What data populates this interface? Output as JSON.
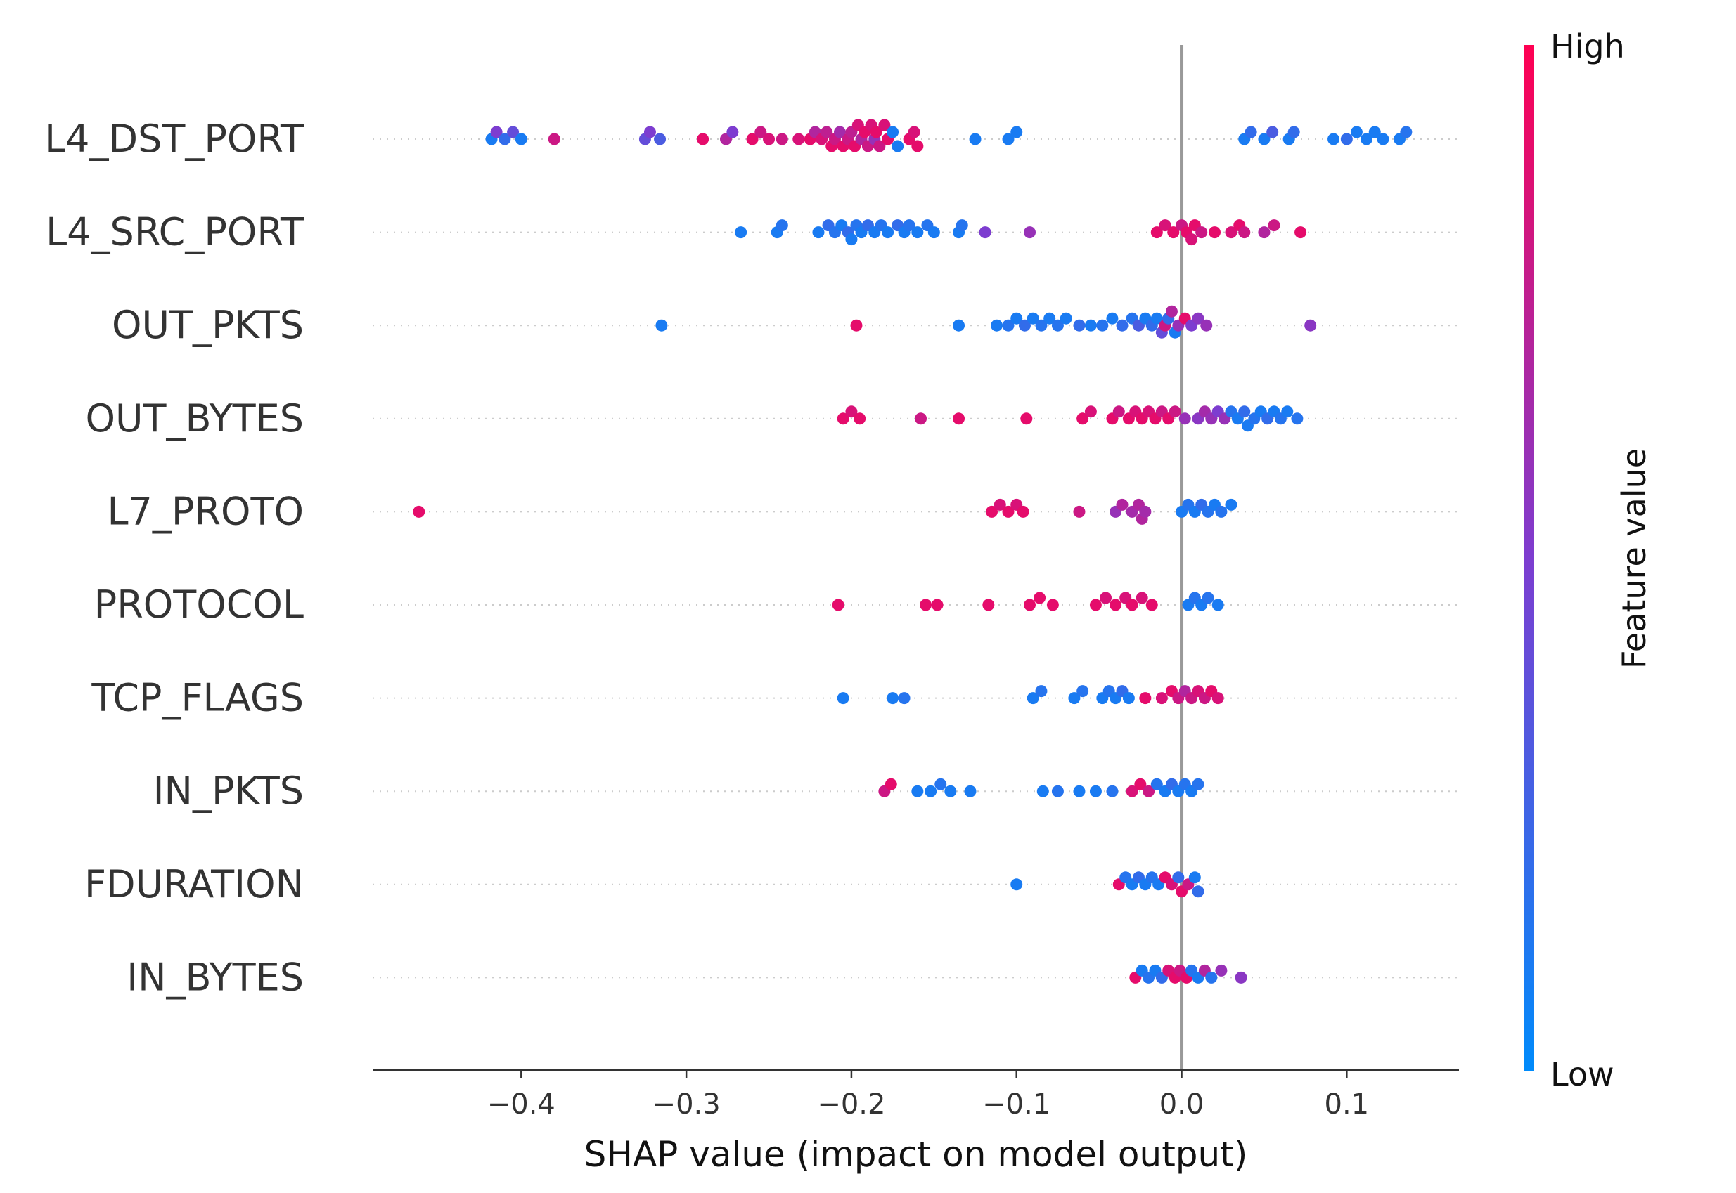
{
  "chart_data": {
    "type": "scatter",
    "title": "",
    "xlabel": "SHAP value (impact on model output)",
    "ylabel": "",
    "xlim": [
      -0.49,
      0.168
    ],
    "xticks": [
      -0.4,
      -0.3,
      -0.2,
      -0.1,
      0.0,
      0.1
    ],
    "xtick_labels": [
      "−0.4",
      "−0.3",
      "−0.2",
      "−0.1",
      "0.0",
      "0.1"
    ],
    "grid": false,
    "zero_line": 0.0,
    "features": [
      "L4_DST_PORT",
      "L4_SRC_PORT",
      "OUT_PKTS",
      "OUT_BYTES",
      "L7_PROTO",
      "PROTOCOL",
      "TCP_FLAGS",
      "IN_PKTS",
      "FDURATION",
      "IN_BYTES"
    ],
    "colorbar": {
      "title": "Feature value",
      "high_label": "High",
      "low_label": "Low",
      "low_color": "#008bfb",
      "high_color": "#ff0052"
    },
    "series": [
      {
        "feature": "L4_DST_PORT",
        "points": [
          [
            -0.418,
            0.1
          ],
          [
            -0.415,
            0.5
          ],
          [
            -0.41,
            0.2
          ],
          [
            -0.405,
            0.4
          ],
          [
            -0.4,
            0.1
          ],
          [
            -0.38,
            0.8
          ],
          [
            -0.325,
            0.4
          ],
          [
            -0.322,
            0.5
          ],
          [
            -0.316,
            0.3
          ],
          [
            -0.29,
            0.9
          ],
          [
            -0.276,
            0.7
          ],
          [
            -0.272,
            0.5
          ],
          [
            -0.26,
            0.9
          ],
          [
            -0.255,
            0.8
          ],
          [
            -0.25,
            0.85
          ],
          [
            -0.242,
            0.8
          ],
          [
            -0.232,
            0.85
          ],
          [
            -0.225,
            0.9
          ],
          [
            -0.222,
            0.7
          ],
          [
            -0.218,
            0.85
          ],
          [
            -0.215,
            0.75
          ],
          [
            -0.212,
            0.9
          ],
          [
            -0.21,
            0.8
          ],
          [
            -0.207,
            0.65
          ],
          [
            -0.205,
            0.9
          ],
          [
            -0.202,
            0.8
          ],
          [
            -0.2,
            0.75
          ],
          [
            -0.198,
            0.9
          ],
          [
            -0.196,
            0.85
          ],
          [
            -0.194,
            0.7
          ],
          [
            -0.192,
            0.9
          ],
          [
            -0.19,
            0.8
          ],
          [
            -0.188,
            0.85
          ],
          [
            -0.186,
            0.6
          ],
          [
            -0.185,
            0.9
          ],
          [
            -0.183,
            0.8
          ],
          [
            -0.18,
            0.85
          ],
          [
            -0.178,
            0.9
          ],
          [
            -0.175,
            0.1
          ],
          [
            -0.172,
            0.1
          ],
          [
            -0.165,
            0.9
          ],
          [
            -0.162,
            0.85
          ],
          [
            -0.16,
            0.9
          ],
          [
            -0.125,
            0.1
          ],
          [
            -0.105,
            0.1
          ],
          [
            -0.1,
            0.1
          ],
          [
            0.038,
            0.1
          ],
          [
            0.042,
            0.2
          ],
          [
            0.05,
            0.1
          ],
          [
            0.055,
            0.3
          ],
          [
            0.065,
            0.1
          ],
          [
            0.068,
            0.2
          ],
          [
            0.092,
            0.1
          ],
          [
            0.1,
            0.2
          ],
          [
            0.106,
            0.1
          ],
          [
            0.112,
            0.1
          ],
          [
            0.117,
            0.1
          ],
          [
            0.122,
            0.1
          ],
          [
            0.132,
            0.1
          ],
          [
            0.136,
            0.15
          ]
        ]
      },
      {
        "feature": "L4_SRC_PORT",
        "points": [
          [
            -0.267,
            0.1
          ],
          [
            -0.245,
            0.1
          ],
          [
            -0.242,
            0.15
          ],
          [
            -0.22,
            0.1
          ],
          [
            -0.214,
            0.2
          ],
          [
            -0.21,
            0.15
          ],
          [
            -0.206,
            0.1
          ],
          [
            -0.202,
            0.2
          ],
          [
            -0.2,
            0.1
          ],
          [
            -0.197,
            0.15
          ],
          [
            -0.194,
            0.1
          ],
          [
            -0.19,
            0.2
          ],
          [
            -0.186,
            0.1
          ],
          [
            -0.182,
            0.15
          ],
          [
            -0.178,
            0.1
          ],
          [
            -0.172,
            0.2
          ],
          [
            -0.168,
            0.1
          ],
          [
            -0.165,
            0.15
          ],
          [
            -0.16,
            0.1
          ],
          [
            -0.154,
            0.15
          ],
          [
            -0.15,
            0.1
          ],
          [
            -0.135,
            0.1
          ],
          [
            -0.133,
            0.15
          ],
          [
            -0.119,
            0.5
          ],
          [
            -0.092,
            0.6
          ],
          [
            -0.015,
            0.9
          ],
          [
            -0.01,
            0.85
          ],
          [
            -0.005,
            0.9
          ],
          [
            0.0,
            0.8
          ],
          [
            0.003,
            0.9
          ],
          [
            0.006,
            0.85
          ],
          [
            0.008,
            0.9
          ],
          [
            0.012,
            0.8
          ],
          [
            0.02,
            0.9
          ],
          [
            0.03,
            0.85
          ],
          [
            0.035,
            0.9
          ],
          [
            0.038,
            0.8
          ],
          [
            0.05,
            0.7
          ],
          [
            0.056,
            0.8
          ],
          [
            0.072,
            0.9
          ]
        ]
      },
      {
        "feature": "OUT_PKTS",
        "points": [
          [
            -0.315,
            0.1
          ],
          [
            -0.197,
            0.9
          ],
          [
            -0.135,
            0.1
          ],
          [
            -0.112,
            0.1
          ],
          [
            -0.105,
            0.15
          ],
          [
            -0.1,
            0.1
          ],
          [
            -0.095,
            0.2
          ],
          [
            -0.09,
            0.1
          ],
          [
            -0.085,
            0.15
          ],
          [
            -0.08,
            0.1
          ],
          [
            -0.075,
            0.15
          ],
          [
            -0.07,
            0.1
          ],
          [
            -0.062,
            0.2
          ],
          [
            -0.055,
            0.1
          ],
          [
            -0.048,
            0.15
          ],
          [
            -0.042,
            0.1
          ],
          [
            -0.036,
            0.2
          ],
          [
            -0.03,
            0.15
          ],
          [
            -0.026,
            0.3
          ],
          [
            -0.022,
            0.1
          ],
          [
            -0.018,
            0.2
          ],
          [
            -0.015,
            0.1
          ],
          [
            -0.012,
            0.4
          ],
          [
            -0.01,
            0.8
          ],
          [
            -0.008,
            0.2
          ],
          [
            -0.006,
            0.7
          ],
          [
            -0.004,
            0.1
          ],
          [
            -0.002,
            0.6
          ],
          [
            0.002,
            0.9
          ],
          [
            0.006,
            0.5
          ],
          [
            0.01,
            0.55
          ],
          [
            0.015,
            0.6
          ],
          [
            0.078,
            0.55
          ]
        ]
      },
      {
        "feature": "OUT_BYTES",
        "points": [
          [
            -0.205,
            0.9
          ],
          [
            -0.2,
            0.85
          ],
          [
            -0.195,
            0.9
          ],
          [
            -0.158,
            0.8
          ],
          [
            -0.135,
            0.9
          ],
          [
            -0.094,
            0.9
          ],
          [
            -0.06,
            0.9
          ],
          [
            -0.055,
            0.85
          ],
          [
            -0.042,
            0.9
          ],
          [
            -0.038,
            0.8
          ],
          [
            -0.032,
            0.9
          ],
          [
            -0.028,
            0.85
          ],
          [
            -0.024,
            0.9
          ],
          [
            -0.02,
            0.85
          ],
          [
            -0.016,
            0.9
          ],
          [
            -0.012,
            0.8
          ],
          [
            -0.008,
            0.9
          ],
          [
            -0.004,
            0.8
          ],
          [
            0.002,
            0.6
          ],
          [
            0.01,
            0.55
          ],
          [
            0.014,
            0.65
          ],
          [
            0.018,
            0.6
          ],
          [
            0.022,
            0.5
          ],
          [
            0.026,
            0.6
          ],
          [
            0.03,
            0.15
          ],
          [
            0.034,
            0.1
          ],
          [
            0.038,
            0.2
          ],
          [
            0.04,
            0.1
          ],
          [
            0.044,
            0.15
          ],
          [
            0.048,
            0.1
          ],
          [
            0.052,
            0.2
          ],
          [
            0.056,
            0.1
          ],
          [
            0.06,
            0.15
          ],
          [
            0.064,
            0.1
          ],
          [
            0.07,
            0.15
          ]
        ]
      },
      {
        "feature": "L7_PROTO",
        "points": [
          [
            -0.462,
            0.9
          ],
          [
            -0.115,
            0.9
          ],
          [
            -0.11,
            0.85
          ],
          [
            -0.105,
            0.9
          ],
          [
            -0.1,
            0.85
          ],
          [
            -0.096,
            0.9
          ],
          [
            -0.062,
            0.8
          ],
          [
            -0.04,
            0.6
          ],
          [
            -0.036,
            0.7
          ],
          [
            -0.03,
            0.65
          ],
          [
            -0.026,
            0.7
          ],
          [
            -0.024,
            0.7
          ],
          [
            -0.022,
            0.65
          ],
          [
            0.0,
            0.1
          ],
          [
            0.004,
            0.15
          ],
          [
            0.008,
            0.1
          ],
          [
            0.012,
            0.2
          ],
          [
            0.016,
            0.15
          ],
          [
            0.02,
            0.1
          ],
          [
            0.024,
            0.15
          ],
          [
            0.03,
            0.1
          ]
        ]
      },
      {
        "feature": "PROTOCOL",
        "points": [
          [
            -0.208,
            0.9
          ],
          [
            -0.155,
            0.9
          ],
          [
            -0.148,
            0.9
          ],
          [
            -0.117,
            0.9
          ],
          [
            -0.092,
            0.9
          ],
          [
            -0.086,
            0.9
          ],
          [
            -0.078,
            0.9
          ],
          [
            -0.052,
            0.9
          ],
          [
            -0.046,
            0.85
          ],
          [
            -0.04,
            0.9
          ],
          [
            -0.034,
            0.85
          ],
          [
            -0.03,
            0.9
          ],
          [
            -0.024,
            0.85
          ],
          [
            -0.018,
            0.9
          ],
          [
            0.004,
            0.1
          ],
          [
            0.008,
            0.15
          ],
          [
            0.012,
            0.1
          ],
          [
            0.016,
            0.15
          ],
          [
            0.022,
            0.1
          ]
        ]
      },
      {
        "feature": "TCP_FLAGS",
        "points": [
          [
            -0.205,
            0.1
          ],
          [
            -0.175,
            0.1
          ],
          [
            -0.168,
            0.15
          ],
          [
            -0.09,
            0.1
          ],
          [
            -0.085,
            0.15
          ],
          [
            -0.065,
            0.1
          ],
          [
            -0.06,
            0.15
          ],
          [
            -0.048,
            0.1
          ],
          [
            -0.044,
            0.15
          ],
          [
            -0.04,
            0.1
          ],
          [
            -0.036,
            0.2
          ],
          [
            -0.032,
            0.1
          ],
          [
            -0.022,
            0.9
          ],
          [
            -0.012,
            0.85
          ],
          [
            -0.006,
            0.9
          ],
          [
            -0.002,
            0.8
          ],
          [
            0.002,
            0.7
          ],
          [
            0.006,
            0.8
          ],
          [
            0.01,
            0.85
          ],
          [
            0.014,
            0.8
          ],
          [
            0.018,
            0.9
          ],
          [
            0.022,
            0.85
          ]
        ]
      },
      {
        "feature": "IN_PKTS",
        "points": [
          [
            -0.18,
            0.8
          ],
          [
            -0.176,
            0.9
          ],
          [
            -0.16,
            0.1
          ],
          [
            -0.152,
            0.1
          ],
          [
            -0.146,
            0.15
          ],
          [
            -0.14,
            0.1
          ],
          [
            -0.128,
            0.1
          ],
          [
            -0.084,
            0.1
          ],
          [
            -0.075,
            0.15
          ],
          [
            -0.062,
            0.1
          ],
          [
            -0.052,
            0.1
          ],
          [
            -0.042,
            0.15
          ],
          [
            -0.03,
            0.85
          ],
          [
            -0.025,
            0.9
          ],
          [
            -0.02,
            0.8
          ],
          [
            -0.015,
            0.15
          ],
          [
            -0.01,
            0.1
          ],
          [
            -0.006,
            0.2
          ],
          [
            -0.002,
            0.1
          ],
          [
            0.002,
            0.15
          ],
          [
            0.006,
            0.1
          ],
          [
            0.01,
            0.15
          ]
        ]
      },
      {
        "feature": "FDURATION",
        "points": [
          [
            -0.1,
            0.1
          ],
          [
            -0.038,
            0.9
          ],
          [
            -0.034,
            0.15
          ],
          [
            -0.03,
            0.1
          ],
          [
            -0.026,
            0.2
          ],
          [
            -0.022,
            0.1
          ],
          [
            -0.018,
            0.15
          ],
          [
            -0.014,
            0.1
          ],
          [
            -0.01,
            0.9
          ],
          [
            -0.006,
            0.85
          ],
          [
            -0.002,
            0.2
          ],
          [
            0.0,
            0.9
          ],
          [
            0.004,
            0.8
          ],
          [
            0.008,
            0.1
          ],
          [
            0.01,
            0.2
          ]
        ]
      },
      {
        "feature": "IN_BYTES",
        "points": [
          [
            -0.028,
            0.9
          ],
          [
            -0.024,
            0.1
          ],
          [
            -0.02,
            0.15
          ],
          [
            -0.016,
            0.1
          ],
          [
            -0.012,
            0.2
          ],
          [
            -0.008,
            0.85
          ],
          [
            -0.004,
            0.9
          ],
          [
            -0.001,
            0.8
          ],
          [
            0.003,
            0.9
          ],
          [
            0.006,
            0.15
          ],
          [
            0.01,
            0.1
          ],
          [
            0.014,
            0.7
          ],
          [
            0.018,
            0.15
          ],
          [
            0.024,
            0.6
          ],
          [
            0.036,
            0.55
          ]
        ]
      }
    ]
  }
}
